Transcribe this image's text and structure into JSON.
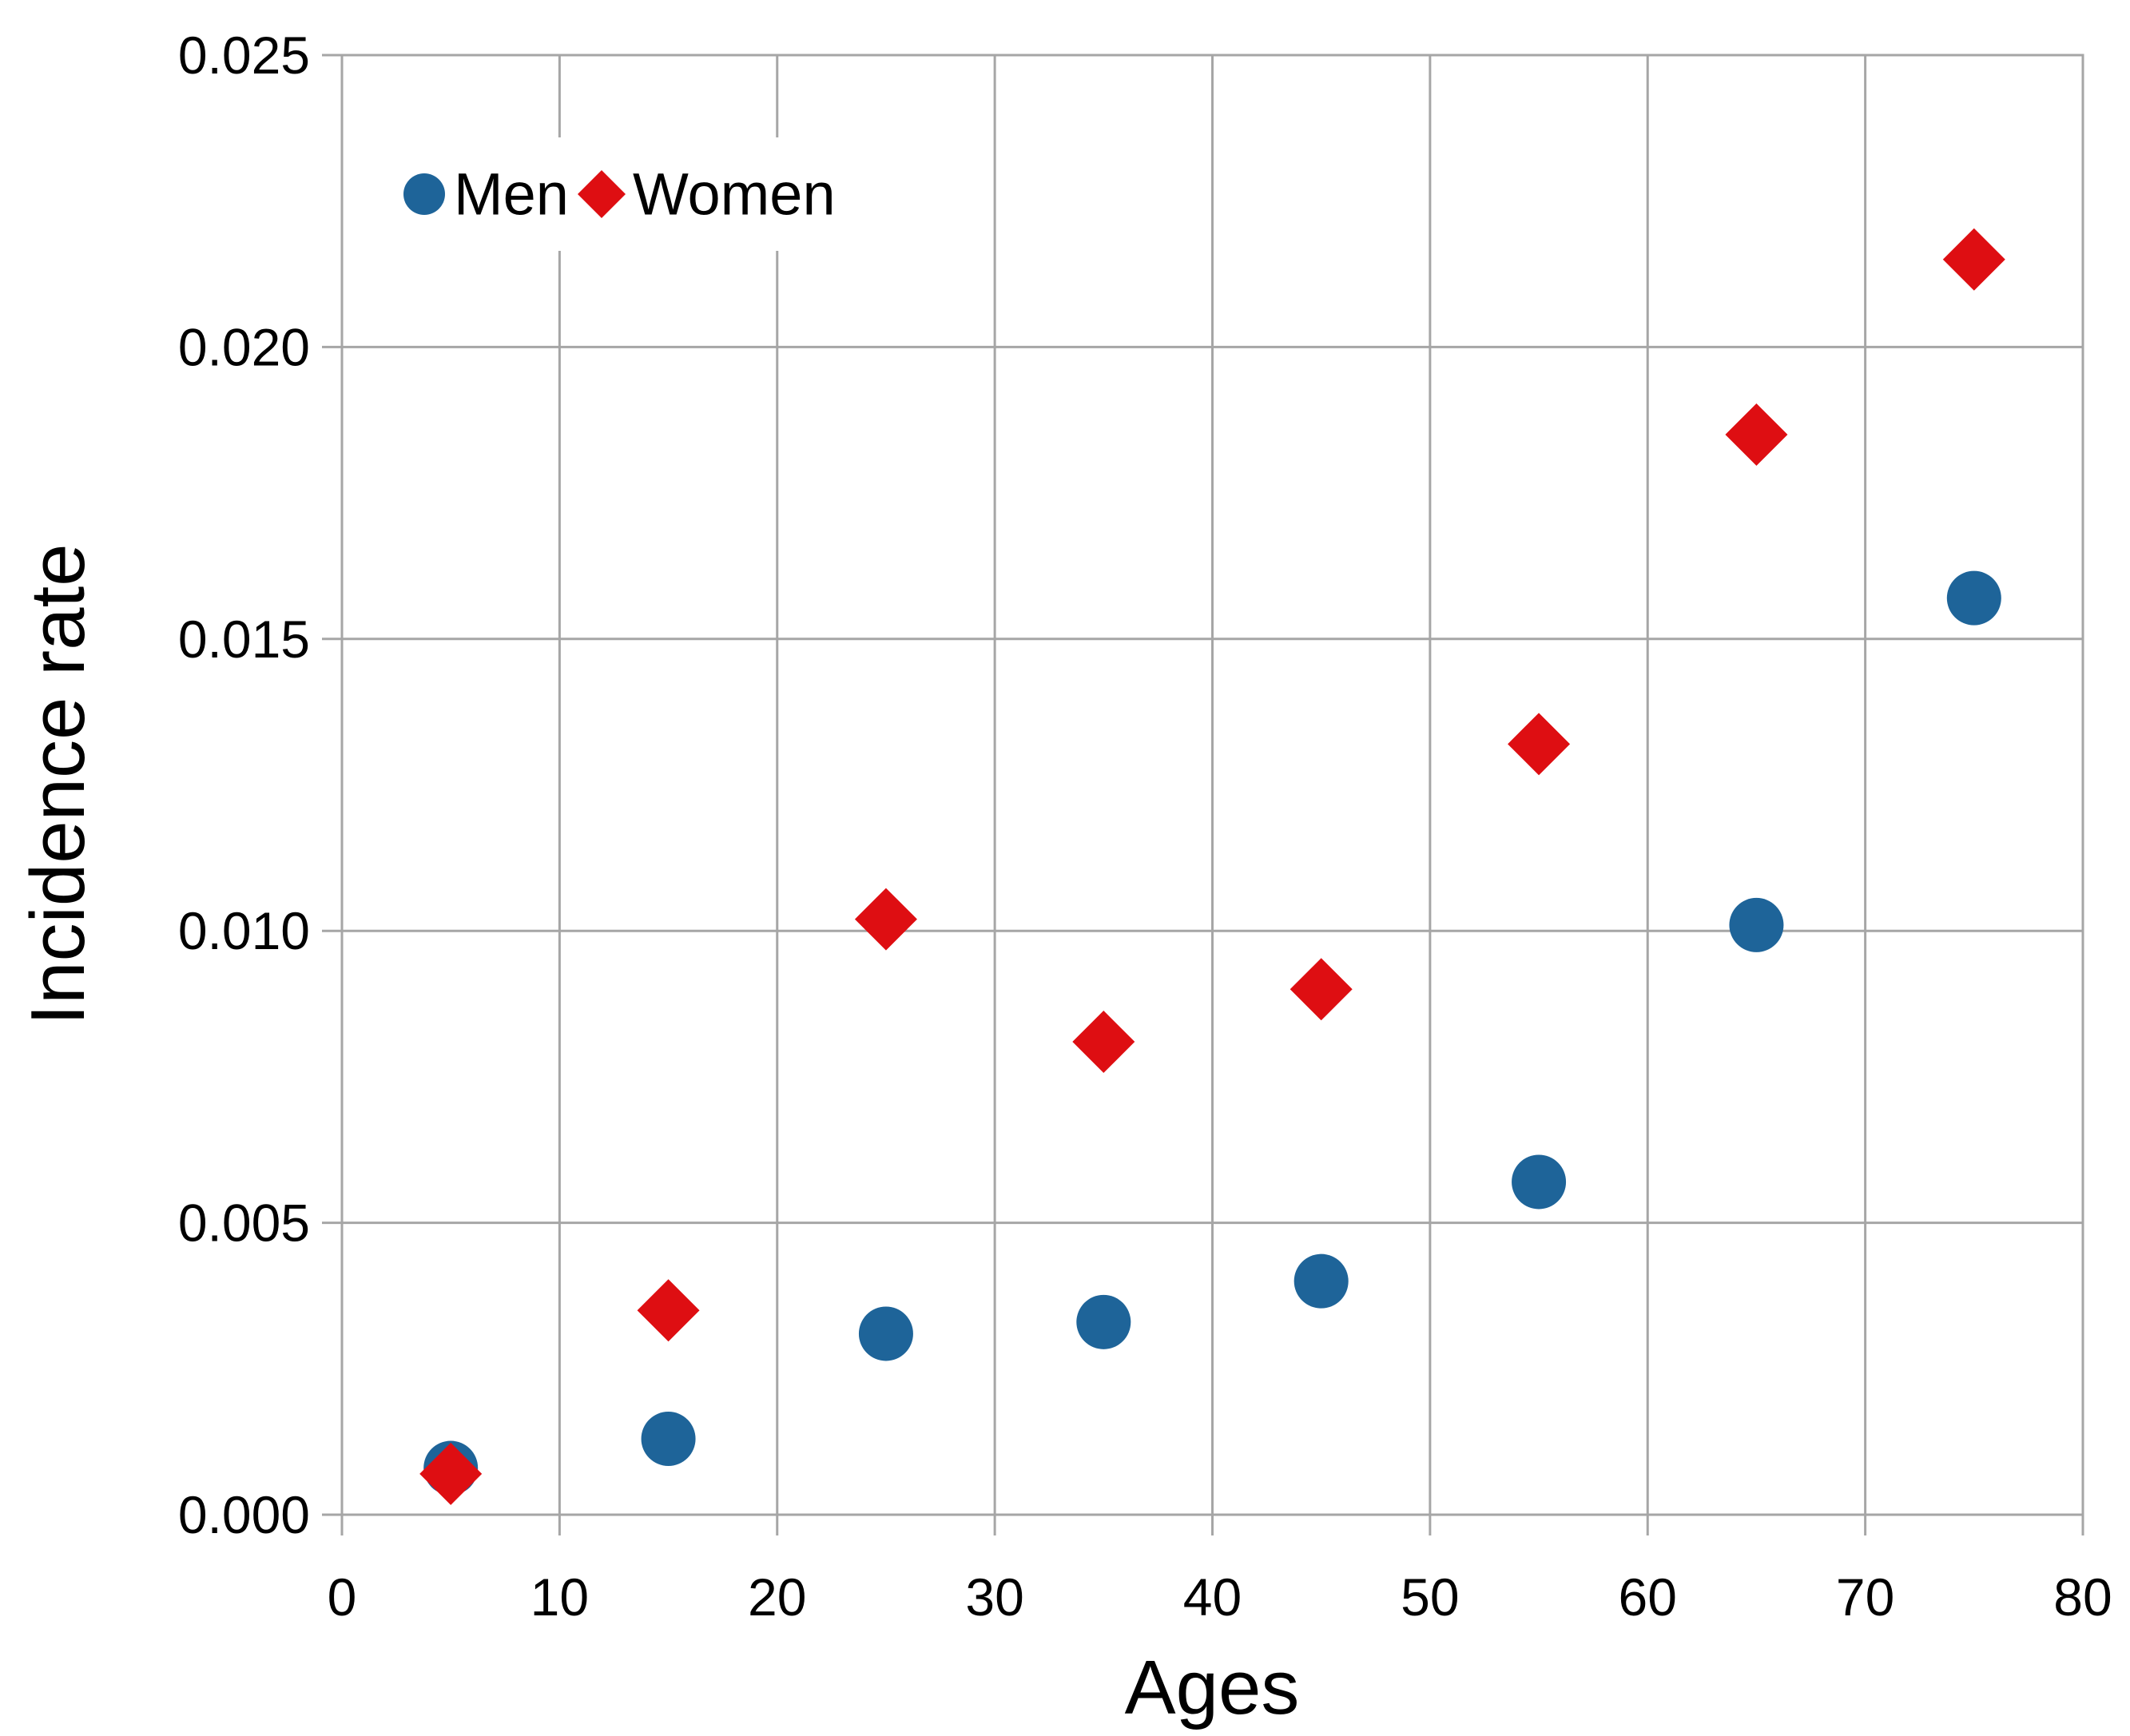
{
  "chart_data": {
    "type": "scatter",
    "title": "",
    "xlabel": "Ages",
    "ylabel": "Incidence rate",
    "x": [
      5,
      15,
      25,
      35,
      45,
      55,
      65,
      75
    ],
    "series": [
      {
        "name": "Men",
        "marker": "circle",
        "color": "#1E6499",
        "values": [
          0.0008,
          0.0013,
          0.0031,
          0.0033,
          0.004,
          0.0057,
          0.0101,
          0.0157
        ]
      },
      {
        "name": "Women",
        "marker": "diamond",
        "color": "#DE0E12",
        "values": [
          0.0007,
          0.0035,
          0.0102,
          0.0081,
          0.009,
          0.0132,
          0.0185,
          0.0215
        ]
      }
    ],
    "xlim": [
      0,
      80
    ],
    "ylim": [
      0,
      0.025
    ],
    "x_ticks": [
      "0",
      "10",
      "20",
      "30",
      "40",
      "50",
      "60",
      "70",
      "80"
    ],
    "y_ticks": [
      "0.000",
      "0.005",
      "0.010",
      "0.015",
      "0.020",
      "0.025"
    ],
    "x_tick_step": 10,
    "y_tick_step": 0.005,
    "grid": true,
    "legend_position": "top-left-inside",
    "gridline_color": "#A6A6A6",
    "background_color": "#FFFFFF",
    "text_color": "#000000"
  }
}
